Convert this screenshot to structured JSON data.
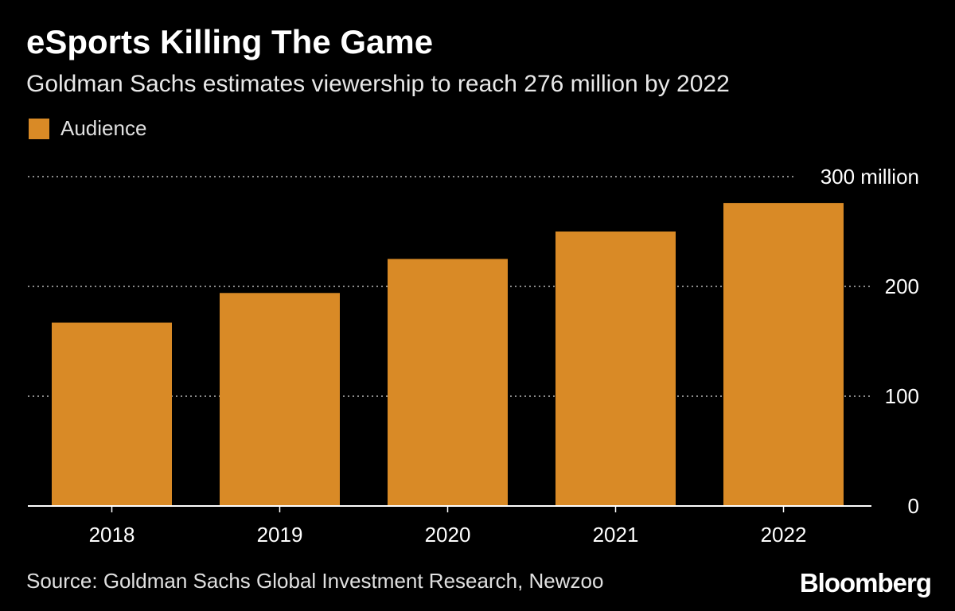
{
  "header": {
    "title": "eSports Killing The Game",
    "subtitle": "Goldman Sachs estimates viewership to reach 276 million by 2022"
  },
  "footer": {
    "source": "Source: Goldman Sachs Global Investment Research, Newzoo",
    "brand": "Bloomberg"
  },
  "colors": {
    "background": "#000000",
    "bar": "#d98a26",
    "gridline": "#8a8a8a",
    "axis": "#ffffff",
    "text": "#ffffff"
  },
  "chart_data": {
    "type": "bar",
    "title": "eSports Killing The Game",
    "subtitle": "Goldman Sachs estimates viewership to reach 276 million by 2022",
    "categories": [
      "2018",
      "2019",
      "2020",
      "2021",
      "2022"
    ],
    "series": [
      {
        "name": "Audience",
        "values": [
          167,
          194,
          225,
          250,
          276
        ]
      }
    ],
    "ylim": [
      0,
      300
    ],
    "yticks": [
      0,
      100,
      200,
      300
    ],
    "ytick_labels": [
      "0",
      "100",
      "200",
      "300 million"
    ],
    "y_axis_side": "right",
    "grid": "horizontal dotted",
    "legend_position": "top-left"
  }
}
